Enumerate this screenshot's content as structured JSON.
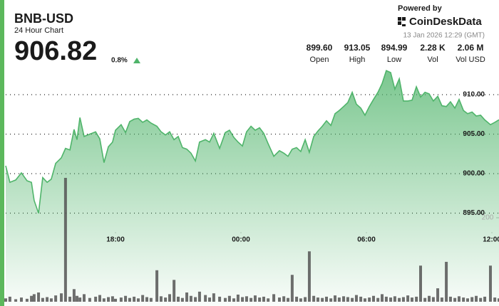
{
  "header": {
    "symbol": "BNB-USD",
    "subtitle": "24 Hour Chart",
    "price": "906.82",
    "change": "0.8%",
    "powered_by": "Powered by",
    "brand": "CoinDeskData",
    "timestamp": "13 Jan 2026 12:29 (GMT)"
  },
  "stats": [
    {
      "value": "899.60",
      "label": "Open"
    },
    {
      "value": "913.05",
      "label": "High"
    },
    {
      "value": "894.99",
      "label": "Low"
    },
    {
      "value": "2.28 K",
      "label": "Vol"
    },
    {
      "value": "2.06 M",
      "label": "Vol USD"
    }
  ],
  "chart_data": {
    "type": "line",
    "x": [
      12.75,
      12.95,
      13.23,
      13.5,
      13.77,
      13.98,
      14.11,
      14.32,
      14.52,
      14.73,
      14.93,
      15.14,
      15.41,
      15.61,
      15.82,
      16.02,
      16.16,
      16.3,
      16.5,
      16.77,
      17.05,
      17.25,
      17.45,
      17.66,
      17.86,
      18.0,
      18.27,
      18.48,
      18.68,
      18.89,
      19.09,
      19.3,
      19.5,
      19.7,
      19.98,
      20.18,
      20.39,
      20.59,
      20.8,
      21.0,
      21.2,
      21.41,
      21.61,
      21.82,
      22.02,
      22.3,
      22.5,
      22.7,
      22.98,
      23.25,
      23.45,
      23.66,
      23.86,
      24.07,
      24.27,
      24.48,
      24.68,
      24.89,
      25.09,
      25.3,
      25.57,
      25.84,
      26.05,
      26.25,
      26.45,
      26.66,
      26.86,
      27.07,
      27.27,
      27.48,
      27.68,
      27.89,
      28.09,
      28.3,
      28.5,
      28.7,
      28.91,
      29.11,
      29.32,
      29.52,
      29.73,
      29.93,
      30.14,
      30.34,
      30.55,
      30.75,
      30.95,
      31.16,
      31.36,
      31.57,
      31.77,
      31.98,
      32.18,
      32.39,
      32.59,
      32.8,
      33.0,
      33.2,
      33.41,
      33.61,
      33.82,
      34.02,
      34.23,
      34.43,
      34.64,
      34.84,
      35.05,
      35.25,
      35.46,
      35.66,
      35.93,
      36.14,
      36.34
    ],
    "series": [
      {
        "type": "area",
        "color": "#4fb46a",
        "values": [
          901.0,
          898.9,
          899.2,
          900.1,
          899.1,
          898.9,
          896.6,
          894.99,
          899.5,
          898.9,
          899.3,
          901.3,
          902.0,
          903.2,
          903.0,
          905.6,
          904.3,
          907.1,
          904.7,
          905.0,
          905.3,
          904.4,
          901.4,
          903.4,
          904.0,
          905.5,
          906.2,
          905.2,
          906.6,
          906.9,
          907.0,
          906.5,
          906.8,
          906.4,
          906.0,
          905.3,
          904.9,
          905.3,
          904.3,
          904.7,
          903.3,
          903.1,
          902.6,
          901.6,
          904.0,
          904.3,
          904.0,
          905.1,
          903.2,
          905.2,
          905.5,
          904.6,
          904.0,
          903.5,
          905.3,
          906.0,
          905.5,
          905.8,
          905.1,
          903.8,
          902.2,
          902.9,
          902.6,
          902.2,
          903.1,
          903.3,
          902.8,
          904.3,
          902.7,
          904.7,
          905.4,
          906.0,
          906.7,
          906.1,
          907.6,
          908.0,
          908.5,
          909.0,
          910.3,
          908.8,
          908.3,
          907.4,
          908.5,
          909.4,
          910.3,
          911.4,
          913.05,
          912.8,
          910.7,
          912.0,
          909.2,
          909.2,
          909.3,
          911.0,
          909.7,
          910.3,
          910.1,
          909.2,
          909.8,
          908.6,
          908.5,
          909.1,
          908.3,
          909.4,
          908.0,
          907.6,
          907.8,
          907.3,
          907.4,
          906.8,
          906.2,
          906.5,
          906.82
        ]
      },
      {
        "type": "bar",
        "axis": "y2",
        "color": "#555555",
        "values": [
          8,
          12,
          6,
          10,
          7,
          14,
          18,
          22,
          9,
          11,
          8,
          15,
          20,
          295,
          12,
          30,
          14,
          10,
          18,
          9,
          12,
          16,
          8,
          11,
          13,
          7,
          10,
          14,
          9,
          12,
          8,
          16,
          11,
          9,
          75,
          13,
          10,
          18,
          52,
          12,
          9,
          22,
          14,
          11,
          24,
          16,
          10,
          20,
          12,
          9,
          14,
          8,
          17,
          11,
          13,
          9,
          15,
          10,
          12,
          8,
          18,
          10,
          13,
          9,
          64,
          12,
          8,
          11,
          120,
          14,
          10,
          9,
          12,
          8,
          15,
          10,
          13,
          11,
          9,
          16,
          12,
          8,
          10,
          14,
          9,
          18,
          12,
          10,
          13,
          9,
          11,
          15,
          10,
          12,
          86,
          9,
          14,
          11,
          32,
          10,
          95,
          12,
          9,
          13,
          10,
          8,
          11,
          14,
          9,
          12,
          86,
          10,
          8
        ]
      }
    ],
    "xlim": [
      12.75,
      36.34
    ],
    "xticks": [
      {
        "value": 18,
        "label": "18:00"
      },
      {
        "value": 24,
        "label": "00:00"
      },
      {
        "value": 30,
        "label": "06:00"
      },
      {
        "value": 36,
        "label": "12:00"
      }
    ],
    "ylim": [
      883.78,
      915.68
    ],
    "yticks": [
      {
        "value": 895,
        "label": "895.00"
      },
      {
        "value": 900,
        "label": "900.00"
      },
      {
        "value": 905,
        "label": "905.00"
      },
      {
        "value": 910,
        "label": "910.00"
      }
    ],
    "y2lim": [
      0,
      600
    ],
    "y2ticks": [
      200
    ],
    "grid": "dotted"
  }
}
